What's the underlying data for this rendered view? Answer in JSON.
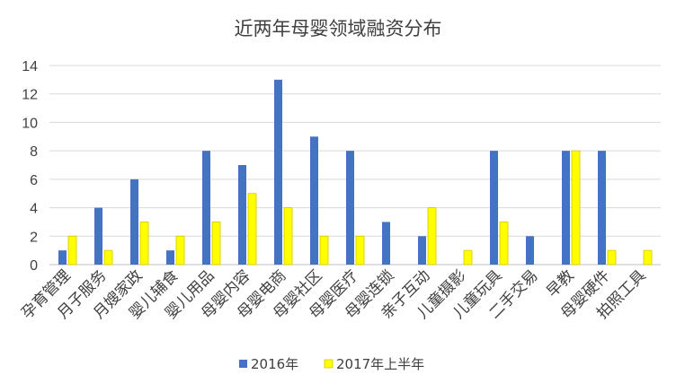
{
  "chart_data": {
    "type": "bar",
    "title": "近两年母婴领域融资分布",
    "xlabel": "",
    "ylabel": "",
    "ylim": [
      0,
      14
    ],
    "yticks": [
      0,
      2,
      4,
      6,
      8,
      10,
      12,
      14
    ],
    "grid": true,
    "legend_position": "bottom",
    "categories": [
      "孕育管理",
      "月子服务",
      "月嫂家政",
      "婴儿辅食",
      "婴儿用品",
      "母婴内容",
      "母婴电商",
      "母婴社区",
      "母婴医疗",
      "母婴连锁",
      "亲子互动",
      "儿童摄影",
      "儿童玩具",
      "二手交易",
      "早教",
      "母婴硬件",
      "拍照工具"
    ],
    "series": [
      {
        "name": "2016年",
        "color": "#4472C4",
        "values": [
          1,
          4,
          6,
          1,
          8,
          7,
          13,
          9,
          8,
          3,
          2,
          0,
          8,
          2,
          8,
          8,
          0
        ]
      },
      {
        "name": "2017年上半年",
        "color": "#FFFF00",
        "values": [
          2,
          1,
          3,
          2,
          3,
          5,
          4,
          2,
          2,
          0,
          4,
          1,
          3,
          0,
          8,
          1,
          1
        ]
      }
    ]
  }
}
